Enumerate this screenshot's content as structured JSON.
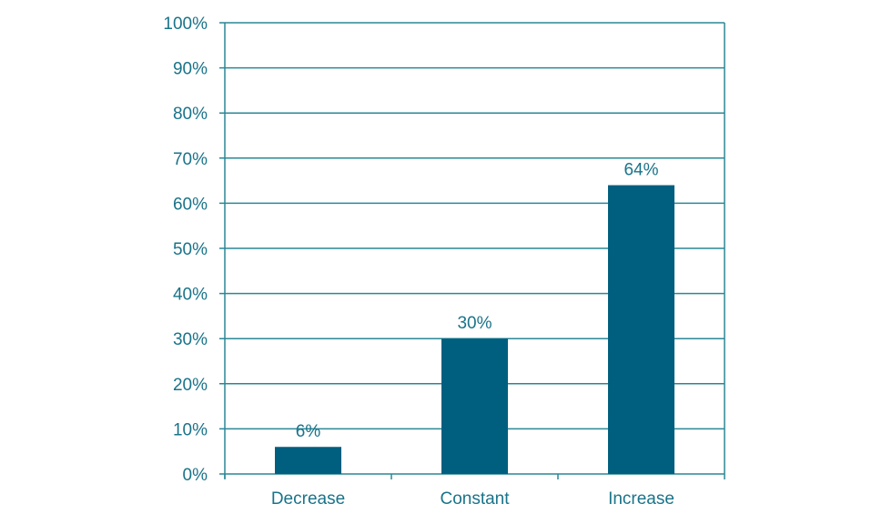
{
  "chart_data": {
    "type": "bar",
    "title": "",
    "xlabel": "",
    "ylabel": "",
    "categories": [
      "Decrease",
      "Constant",
      "Increase"
    ],
    "values": [
      6,
      30,
      64
    ],
    "data_labels": [
      "6%",
      "30%",
      "64%"
    ],
    "ylim": [
      0,
      100
    ],
    "yticks": [
      0,
      10,
      20,
      30,
      40,
      50,
      60,
      70,
      80,
      90,
      100
    ],
    "ytick_labels": [
      "0%",
      "10%",
      "20%",
      "30%",
      "40%",
      "50%",
      "60%",
      "70%",
      "80%",
      "90%",
      "100%"
    ],
    "grid": true,
    "legend": "none",
    "colors": {
      "bar": "#005f7f",
      "text": "#1a7389",
      "axis": "#2b8796"
    }
  }
}
